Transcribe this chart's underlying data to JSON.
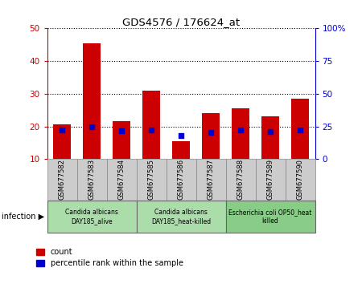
{
  "title": "GDS4576 / 176624_at",
  "samples": [
    "GSM677582",
    "GSM677583",
    "GSM677584",
    "GSM677585",
    "GSM677586",
    "GSM677587",
    "GSM677588",
    "GSM677589",
    "GSM677590"
  ],
  "count_values": [
    20.5,
    45.5,
    21.5,
    31.0,
    15.5,
    24.0,
    25.5,
    23.0,
    28.5
  ],
  "percentile_values": [
    22.0,
    24.5,
    21.5,
    22.0,
    18.0,
    20.5,
    22.0,
    21.0,
    22.0
  ],
  "ylim_left": [
    10,
    50
  ],
  "ylim_right": [
    0,
    100
  ],
  "yticks_left": [
    10,
    20,
    30,
    40,
    50
  ],
  "yticks_right": [
    0,
    25,
    50,
    75,
    100
  ],
  "ytick_labels_right": [
    "0",
    "25",
    "50",
    "75",
    "100%"
  ],
  "bar_color": "#cc0000",
  "dot_color": "#0000cc",
  "bg_plot": "#ffffff",
  "bg_xticklabels": "#cccccc",
  "groups": [
    {
      "label": "Candida albicans\nDAY185_alive",
      "start": 0,
      "end": 3,
      "color": "#aaddaa"
    },
    {
      "label": "Candida albicans\nDAY185_heat-killed",
      "start": 3,
      "end": 6,
      "color": "#aaddaa"
    },
    {
      "label": "Escherichia coli OP50_heat\nkilled",
      "start": 6,
      "end": 9,
      "color": "#88cc88"
    }
  ],
  "infection_label": "infection",
  "legend_count_label": "count",
  "legend_pct_label": "percentile rank within the sample",
  "left_axis_color": "#cc0000",
  "right_axis_color": "#0000cc",
  "bar_width": 0.6,
  "fig_width": 4.5,
  "fig_height": 3.54,
  "dpi": 100
}
